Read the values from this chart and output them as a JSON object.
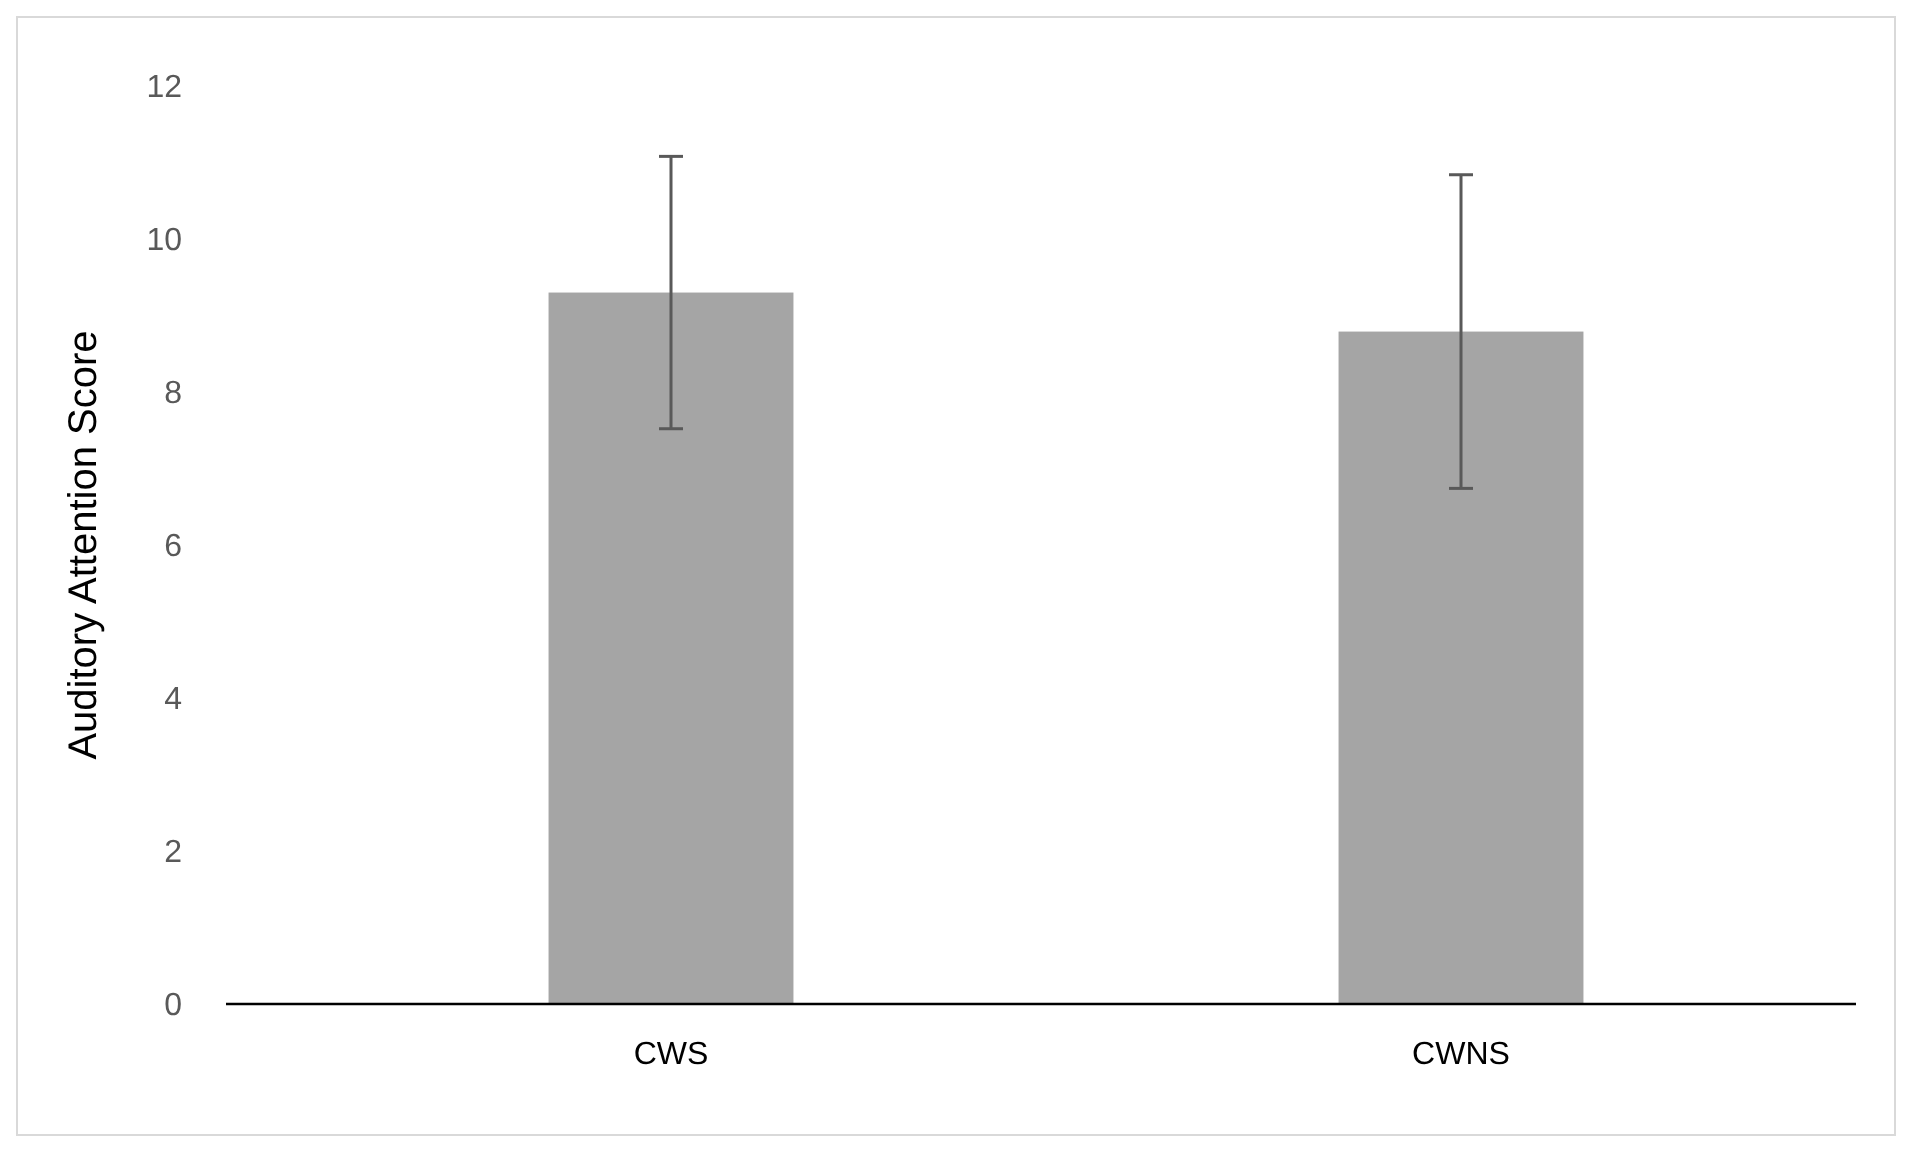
{
  "chart_data": {
    "type": "bar",
    "ylabel": "Auditory Attention Score",
    "categories": [
      "CWS",
      "CWNS"
    ],
    "values": [
      9.3,
      8.79
    ],
    "errors": [
      1.78,
      2.05
    ],
    "color": "#a5a5a5",
    "ylim": [
      0,
      12
    ],
    "yticks": [
      0,
      2,
      4,
      6,
      8,
      10,
      12
    ],
    "grid": false
  }
}
